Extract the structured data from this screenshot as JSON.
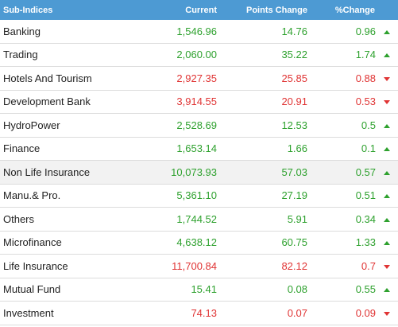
{
  "header": {
    "col_name": "Sub-Indices",
    "col_current": "Current",
    "col_points": "Points Change",
    "col_percent": "%Change"
  },
  "colors": {
    "header_bg": "#4d9ad3",
    "up": "#2ea12e",
    "down": "#e03434"
  },
  "rows": [
    {
      "name": "Banking",
      "current": "1,546.96",
      "points": "14.76",
      "percent": "0.96",
      "dir": "up"
    },
    {
      "name": "Trading",
      "current": "2,060.00",
      "points": "35.22",
      "percent": "1.74",
      "dir": "up"
    },
    {
      "name": "Hotels And Tourism",
      "current": "2,927.35",
      "points": "25.85",
      "percent": "0.88",
      "dir": "down"
    },
    {
      "name": "Development Bank",
      "current": "3,914.55",
      "points": "20.91",
      "percent": "0.53",
      "dir": "down"
    },
    {
      "name": "HydroPower",
      "current": "2,528.69",
      "points": "12.53",
      "percent": "0.5",
      "dir": "up"
    },
    {
      "name": "Finance",
      "current": "1,653.14",
      "points": "1.66",
      "percent": "0.1",
      "dir": "up"
    },
    {
      "name": "Non Life Insurance",
      "current": "10,073.93",
      "points": "57.03",
      "percent": "0.57",
      "dir": "up"
    },
    {
      "name": "Manu.& Pro.",
      "current": "5,361.10",
      "points": "27.19",
      "percent": "0.51",
      "dir": "up"
    },
    {
      "name": "Others",
      "current": "1,744.52",
      "points": "5.91",
      "percent": "0.34",
      "dir": "up"
    },
    {
      "name": "Microfinance",
      "current": "4,638.12",
      "points": "60.75",
      "percent": "1.33",
      "dir": "up"
    },
    {
      "name": "Life Insurance",
      "current": "11,700.84",
      "points": "82.12",
      "percent": "0.7",
      "dir": "down"
    },
    {
      "name": "Mutual Fund",
      "current": "15.41",
      "points": "0.08",
      "percent": "0.55",
      "dir": "up"
    },
    {
      "name": "Investment",
      "current": "74.13",
      "points": "0.07",
      "percent": "0.09",
      "dir": "down"
    }
  ]
}
